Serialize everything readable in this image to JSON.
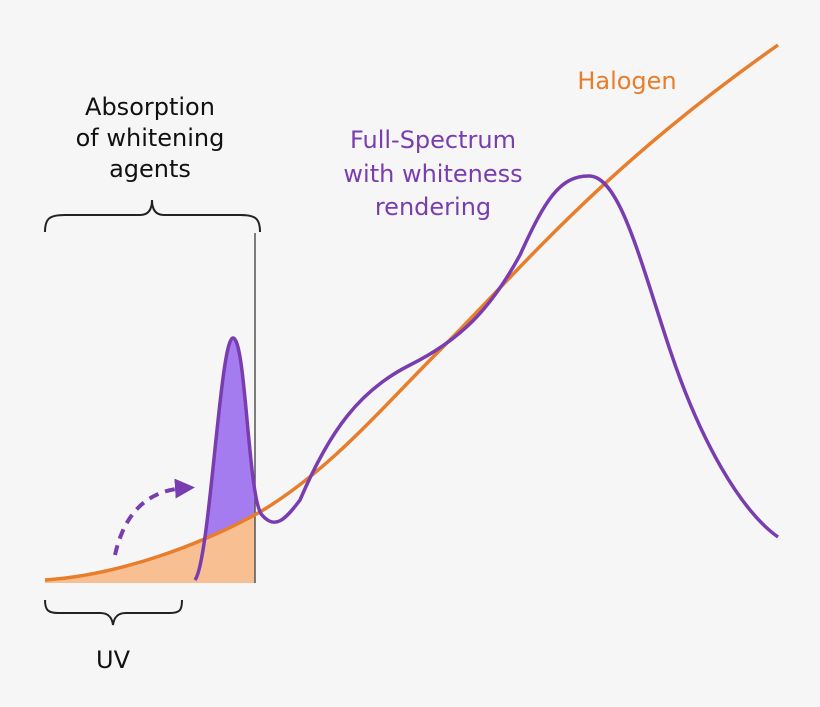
{
  "labels": {
    "absorption": [
      "Absorption",
      "of whitening",
      "agents"
    ],
    "full_spectrum": [
      "Full-Spectrum",
      "with whiteness",
      "rendering"
    ],
    "halogen": "Halogen",
    "uv": "UV"
  }
}
